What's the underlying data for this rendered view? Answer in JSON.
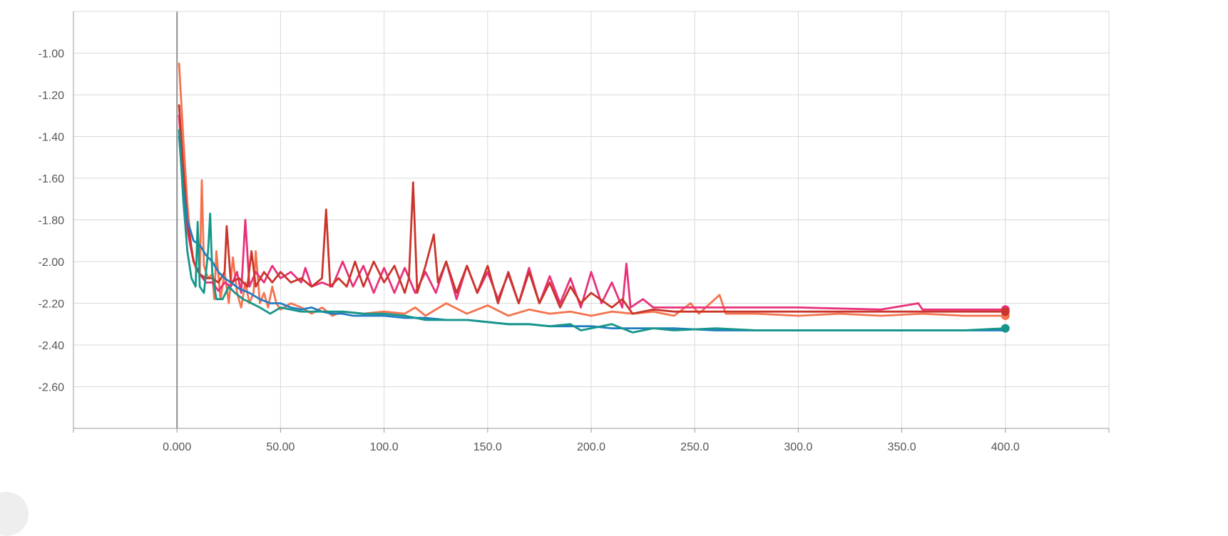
{
  "chart_data": {
    "type": "line",
    "title": "",
    "xlabel": "",
    "ylabel": "",
    "xlim": [
      -50,
      450
    ],
    "ylim": [
      -2.8,
      -0.8
    ],
    "x_ticks": [
      0,
      50,
      100,
      150,
      200,
      250,
      300,
      350,
      400
    ],
    "x_tick_labels": [
      "0.000",
      "50.00",
      "100.0",
      "150.0",
      "200.0",
      "250.0",
      "300.0",
      "350.0",
      "400.0"
    ],
    "y_ticks": [
      -1.0,
      -1.2,
      -1.4,
      -1.6,
      -1.8,
      -2.0,
      -2.2,
      -2.4,
      -2.6
    ],
    "y_tick_labels": [
      "-1.00",
      "-1.20",
      "-1.40",
      "-1.60",
      "-1.80",
      "-2.00",
      "-2.20",
      "-2.40",
      "-2.60"
    ],
    "grid": true,
    "legend": "none",
    "series": [
      {
        "color": "#f4734f",
        "end_marker": true,
        "points": [
          [
            1,
            -1.05
          ],
          [
            3,
            -1.4
          ],
          [
            5,
            -1.72
          ],
          [
            7,
            -1.95
          ],
          [
            9,
            -2.03
          ],
          [
            11,
            -2.06
          ],
          [
            12,
            -1.61
          ],
          [
            13,
            -2.02
          ],
          [
            15,
            -2.08
          ],
          [
            17,
            -2.06
          ],
          [
            18,
            -2.18
          ],
          [
            19,
            -1.95
          ],
          [
            21,
            -2.18
          ],
          [
            23,
            -2.05
          ],
          [
            25,
            -2.2
          ],
          [
            27,
            -1.98
          ],
          [
            29,
            -2.15
          ],
          [
            31,
            -2.22
          ],
          [
            33,
            -2.1
          ],
          [
            35,
            -2.2
          ],
          [
            37,
            -2.15
          ],
          [
            38,
            -1.95
          ],
          [
            40,
            -2.2
          ],
          [
            42,
            -2.15
          ],
          [
            44,
            -2.22
          ],
          [
            46,
            -2.12
          ],
          [
            48,
            -2.2
          ],
          [
            50,
            -2.23
          ],
          [
            55,
            -2.2
          ],
          [
            60,
            -2.22
          ],
          [
            65,
            -2.25
          ],
          [
            70,
            -2.22
          ],
          [
            75,
            -2.26
          ],
          [
            80,
            -2.24
          ],
          [
            90,
            -2.25
          ],
          [
            100,
            -2.24
          ],
          [
            110,
            -2.25
          ],
          [
            115,
            -2.22
          ],
          [
            120,
            -2.26
          ],
          [
            130,
            -2.2
          ],
          [
            140,
            -2.25
          ],
          [
            150,
            -2.21
          ],
          [
            160,
            -2.26
          ],
          [
            170,
            -2.23
          ],
          [
            180,
            -2.25
          ],
          [
            190,
            -2.24
          ],
          [
            200,
            -2.26
          ],
          [
            210,
            -2.24
          ],
          [
            220,
            -2.25
          ],
          [
            230,
            -2.24
          ],
          [
            240,
            -2.26
          ],
          [
            248,
            -2.2
          ],
          [
            252,
            -2.25
          ],
          [
            262,
            -2.16
          ],
          [
            265,
            -2.25
          ],
          [
            280,
            -2.25
          ],
          [
            300,
            -2.26
          ],
          [
            320,
            -2.25
          ],
          [
            340,
            -2.26
          ],
          [
            360,
            -2.25
          ],
          [
            380,
            -2.26
          ],
          [
            400,
            -2.26
          ]
        ]
      },
      {
        "color": "#e8317a",
        "end_marker": true,
        "points": [
          [
            1,
            -1.3
          ],
          [
            3,
            -1.6
          ],
          [
            5,
            -1.85
          ],
          [
            8,
            -2.0
          ],
          [
            11,
            -2.06
          ],
          [
            14,
            -2.1
          ],
          [
            17,
            -2.1
          ],
          [
            20,
            -2.14
          ],
          [
            23,
            -2.1
          ],
          [
            26,
            -2.12
          ],
          [
            29,
            -2.05
          ],
          [
            31,
            -2.15
          ],
          [
            33,
            -1.8
          ],
          [
            35,
            -2.12
          ],
          [
            38,
            -2.05
          ],
          [
            42,
            -2.1
          ],
          [
            46,
            -2.02
          ],
          [
            50,
            -2.08
          ],
          [
            55,
            -2.05
          ],
          [
            60,
            -2.1
          ],
          [
            62,
            -2.03
          ],
          [
            65,
            -2.12
          ],
          [
            70,
            -2.1
          ],
          [
            75,
            -2.12
          ],
          [
            80,
            -2.0
          ],
          [
            85,
            -2.12
          ],
          [
            90,
            -2.02
          ],
          [
            95,
            -2.15
          ],
          [
            100,
            -2.03
          ],
          [
            105,
            -2.15
          ],
          [
            110,
            -2.03
          ],
          [
            115,
            -2.15
          ],
          [
            120,
            -2.05
          ],
          [
            125,
            -2.15
          ],
          [
            130,
            -2.0
          ],
          [
            135,
            -2.18
          ],
          [
            140,
            -2.02
          ],
          [
            145,
            -2.15
          ],
          [
            150,
            -2.05
          ],
          [
            155,
            -2.18
          ],
          [
            160,
            -2.06
          ],
          [
            165,
            -2.2
          ],
          [
            170,
            -2.03
          ],
          [
            175,
            -2.2
          ],
          [
            180,
            -2.07
          ],
          [
            185,
            -2.2
          ],
          [
            190,
            -2.08
          ],
          [
            195,
            -2.22
          ],
          [
            200,
            -2.05
          ],
          [
            205,
            -2.2
          ],
          [
            210,
            -2.1
          ],
          [
            215,
            -2.22
          ],
          [
            217,
            -2.01
          ],
          [
            219,
            -2.22
          ],
          [
            225,
            -2.18
          ],
          [
            230,
            -2.22
          ],
          [
            240,
            -2.22
          ],
          [
            260,
            -2.22
          ],
          [
            300,
            -2.22
          ],
          [
            340,
            -2.23
          ],
          [
            358,
            -2.2
          ],
          [
            360,
            -2.23
          ],
          [
            380,
            -2.23
          ],
          [
            400,
            -2.23
          ]
        ]
      },
      {
        "color": "#c9352a",
        "end_marker": true,
        "points": [
          [
            1,
            -1.25
          ],
          [
            3,
            -1.55
          ],
          [
            5,
            -1.8
          ],
          [
            8,
            -2.0
          ],
          [
            11,
            -2.06
          ],
          [
            14,
            -2.08
          ],
          [
            17,
            -2.08
          ],
          [
            20,
            -2.1
          ],
          [
            23,
            -2.05
          ],
          [
            24,
            -1.83
          ],
          [
            26,
            -2.1
          ],
          [
            30,
            -2.08
          ],
          [
            34,
            -2.12
          ],
          [
            36,
            -1.95
          ],
          [
            38,
            -2.12
          ],
          [
            42,
            -2.05
          ],
          [
            46,
            -2.1
          ],
          [
            50,
            -2.05
          ],
          [
            55,
            -2.1
          ],
          [
            60,
            -2.08
          ],
          [
            65,
            -2.12
          ],
          [
            70,
            -2.08
          ],
          [
            72,
            -1.75
          ],
          [
            74,
            -2.12
          ],
          [
            78,
            -2.08
          ],
          [
            82,
            -2.12
          ],
          [
            86,
            -2.0
          ],
          [
            90,
            -2.12
          ],
          [
            95,
            -2.0
          ],
          [
            100,
            -2.1
          ],
          [
            105,
            -2.02
          ],
          [
            110,
            -2.15
          ],
          [
            112,
            -2.08
          ],
          [
            114,
            -1.62
          ],
          [
            116,
            -2.15
          ],
          [
            120,
            -2.02
          ],
          [
            124,
            -1.87
          ],
          [
            126,
            -2.1
          ],
          [
            130,
            -2.0
          ],
          [
            135,
            -2.15
          ],
          [
            140,
            -2.02
          ],
          [
            145,
            -2.15
          ],
          [
            150,
            -2.02
          ],
          [
            155,
            -2.2
          ],
          [
            160,
            -2.05
          ],
          [
            165,
            -2.2
          ],
          [
            170,
            -2.05
          ],
          [
            175,
            -2.2
          ],
          [
            180,
            -2.1
          ],
          [
            185,
            -2.22
          ],
          [
            190,
            -2.12
          ],
          [
            195,
            -2.2
          ],
          [
            200,
            -2.15
          ],
          [
            210,
            -2.22
          ],
          [
            215,
            -2.18
          ],
          [
            220,
            -2.25
          ],
          [
            230,
            -2.23
          ],
          [
            240,
            -2.24
          ],
          [
            260,
            -2.24
          ],
          [
            300,
            -2.24
          ],
          [
            350,
            -2.24
          ],
          [
            400,
            -2.24
          ]
        ]
      },
      {
        "color": "#1f7ec1",
        "end_marker": false,
        "points": [
          [
            1,
            -1.4
          ],
          [
            3,
            -1.65
          ],
          [
            5,
            -1.8
          ],
          [
            8,
            -1.9
          ],
          [
            11,
            -1.92
          ],
          [
            14,
            -1.97
          ],
          [
            17,
            -2.0
          ],
          [
            20,
            -2.05
          ],
          [
            23,
            -2.08
          ],
          [
            26,
            -2.1
          ],
          [
            30,
            -2.13
          ],
          [
            35,
            -2.15
          ],
          [
            40,
            -2.18
          ],
          [
            45,
            -2.2
          ],
          [
            50,
            -2.2
          ],
          [
            55,
            -2.22
          ],
          [
            60,
            -2.23
          ],
          [
            65,
            -2.22
          ],
          [
            70,
            -2.24
          ],
          [
            75,
            -2.25
          ],
          [
            80,
            -2.25
          ],
          [
            85,
            -2.26
          ],
          [
            90,
            -2.26
          ],
          [
            100,
            -2.26
          ],
          [
            110,
            -2.27
          ],
          [
            120,
            -2.27
          ],
          [
            130,
            -2.28
          ],
          [
            140,
            -2.28
          ],
          [
            150,
            -2.29
          ],
          [
            160,
            -2.3
          ],
          [
            170,
            -2.3
          ],
          [
            180,
            -2.31
          ],
          [
            190,
            -2.31
          ],
          [
            200,
            -2.31
          ],
          [
            210,
            -2.32
          ],
          [
            220,
            -2.32
          ],
          [
            240,
            -2.32
          ],
          [
            260,
            -2.33
          ],
          [
            280,
            -2.33
          ],
          [
            300,
            -2.33
          ],
          [
            320,
            -2.33
          ],
          [
            340,
            -2.33
          ],
          [
            360,
            -2.33
          ],
          [
            380,
            -2.33
          ],
          [
            400,
            -2.33
          ]
        ]
      },
      {
        "color": "#16968a",
        "end_marker": true,
        "points": [
          [
            1,
            -1.37
          ],
          [
            3,
            -1.7
          ],
          [
            5,
            -1.95
          ],
          [
            7,
            -2.08
          ],
          [
            9,
            -2.12
          ],
          [
            10,
            -1.81
          ],
          [
            11,
            -2.12
          ],
          [
            13,
            -2.15
          ],
          [
            15,
            -1.95
          ],
          [
            16,
            -1.77
          ],
          [
            17,
            -2.05
          ],
          [
            19,
            -2.18
          ],
          [
            22,
            -2.18
          ],
          [
            25,
            -2.12
          ],
          [
            28,
            -2.15
          ],
          [
            32,
            -2.18
          ],
          [
            36,
            -2.2
          ],
          [
            40,
            -2.22
          ],
          [
            45,
            -2.25
          ],
          [
            50,
            -2.22
          ],
          [
            60,
            -2.24
          ],
          [
            70,
            -2.24
          ],
          [
            80,
            -2.24
          ],
          [
            90,
            -2.25
          ],
          [
            100,
            -2.25
          ],
          [
            110,
            -2.26
          ],
          [
            120,
            -2.28
          ],
          [
            130,
            -2.28
          ],
          [
            140,
            -2.28
          ],
          [
            150,
            -2.29
          ],
          [
            160,
            -2.3
          ],
          [
            170,
            -2.3
          ],
          [
            180,
            -2.31
          ],
          [
            190,
            -2.3
          ],
          [
            195,
            -2.33
          ],
          [
            200,
            -2.32
          ],
          [
            210,
            -2.3
          ],
          [
            220,
            -2.34
          ],
          [
            230,
            -2.32
          ],
          [
            240,
            -2.33
          ],
          [
            260,
            -2.32
          ],
          [
            280,
            -2.33
          ],
          [
            300,
            -2.33
          ],
          [
            320,
            -2.33
          ],
          [
            340,
            -2.33
          ],
          [
            360,
            -2.33
          ],
          [
            380,
            -2.33
          ],
          [
            400,
            -2.32
          ]
        ]
      }
    ]
  }
}
